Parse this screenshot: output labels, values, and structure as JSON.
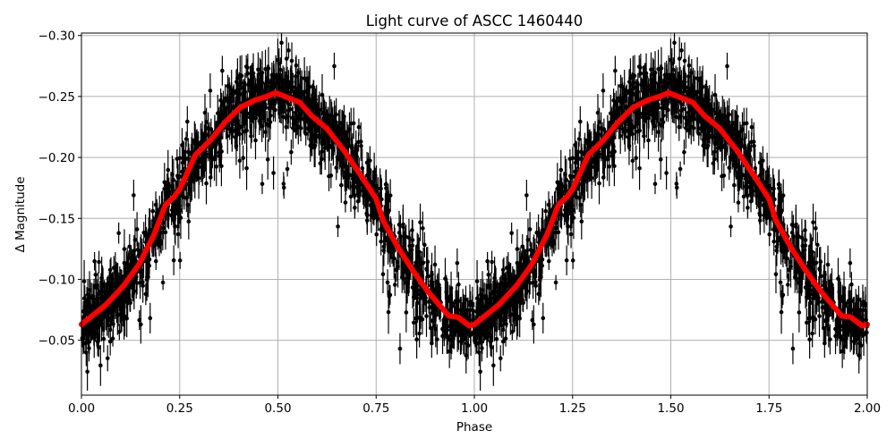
{
  "chart_data": {
    "type": "scatter",
    "title": "Light curve of ASCC 1460440",
    "xlabel": "Phase",
    "ylabel": "Δ Magnitude",
    "xlim": [
      0,
      2
    ],
    "ylim": [
      -0.302,
      -0.005
    ],
    "y_inverted": true,
    "grid": true,
    "xticks": [
      "0.00",
      "0.25",
      "0.50",
      "0.75",
      "1.00",
      "1.25",
      "1.50",
      "1.75",
      "2.00"
    ],
    "xtick_values": [
      0,
      0.25,
      0.5,
      0.75,
      1.0,
      1.25,
      1.5,
      1.75,
      2.0
    ],
    "yticks": [
      "−0.30",
      "−0.25",
      "−0.20",
      "−0.15",
      "−0.10",
      "−0.05"
    ],
    "ytick_values": [
      -0.3,
      -0.25,
      -0.2,
      -0.15,
      -0.1,
      -0.05
    ],
    "series": [
      {
        "kind": "observations with error bars",
        "color": "#000000",
        "description_of_shape": "dense points scattered around the binned curve, repeated over two phase cycles"
      },
      {
        "kind": "binned curve",
        "color": "#ff0000",
        "x": [
          0.0,
          0.062,
          0.108,
          0.146,
          0.184,
          0.214,
          0.237,
          0.252,
          0.29,
          0.328,
          0.366,
          0.404,
          0.442,
          0.472,
          0.494,
          0.518,
          0.556,
          0.586,
          0.624,
          0.67,
          0.716,
          0.75,
          0.768,
          0.806,
          0.844,
          0.882,
          0.935,
          0.958,
          0.987,
          1.0
        ],
        "y": [
          -0.063,
          -0.079,
          -0.095,
          -0.112,
          -0.136,
          -0.161,
          -0.168,
          -0.175,
          -0.202,
          -0.214,
          -0.229,
          -0.241,
          -0.247,
          -0.25,
          -0.253,
          -0.25,
          -0.245,
          -0.234,
          -0.224,
          -0.205,
          -0.183,
          -0.166,
          -0.148,
          -0.126,
          -0.107,
          -0.09,
          -0.07,
          -0.069,
          -0.062,
          -0.063
        ],
        "repeats_each_cycle": true
      }
    ]
  }
}
